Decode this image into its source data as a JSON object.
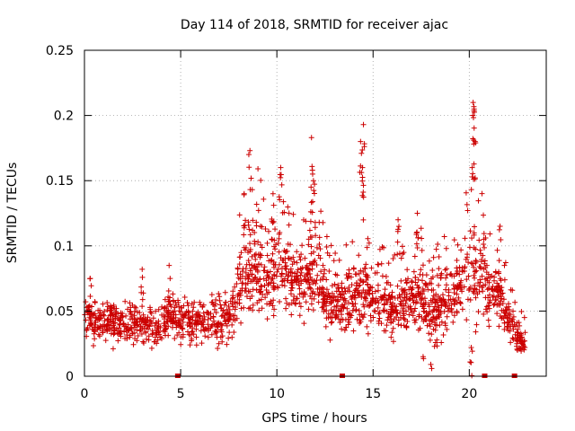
{
  "chart_data": {
    "type": "scatter",
    "title": "Day 114 of 2018, SRMTID for receiver ajac",
    "xlabel": "GPS time / hours",
    "ylabel": "SRMTID / TECUs",
    "xlim": [
      0,
      24
    ],
    "ylim": [
      0,
      0.25
    ],
    "xticks": [
      0,
      5,
      10,
      15,
      20
    ],
    "xtick_labels": [
      "0",
      "5",
      "10",
      "15",
      "20"
    ],
    "yticks": [
      0,
      0.05,
      0.1,
      0.15,
      0.2,
      0.25
    ],
    "ytick_labels": [
      "0",
      "0.05",
      "0.1",
      "0.15",
      "0.2",
      "0.25"
    ],
    "grid": true,
    "marker": "+",
    "color": "#cc0000",
    "baseline_markers_x": [
      4.85,
      13.4,
      20.8,
      22.35
    ],
    "envelope": {
      "hours": [
        0,
        0.5,
        1,
        1.5,
        2,
        2.5,
        3,
        3.5,
        4,
        4.5,
        5,
        5.5,
        6,
        6.5,
        7,
        7.5,
        8,
        8.5,
        9,
        9.5,
        10,
        10.5,
        11,
        11.5,
        12,
        12.5,
        13,
        13.5,
        14,
        14.5,
        15,
        15.5,
        16,
        16.5,
        17,
        17.5,
        18,
        18.5,
        19,
        19.5,
        20,
        20.5,
        21,
        21.5,
        22,
        22.5,
        22.9
      ],
      "mean_tecu": [
        0.045,
        0.043,
        0.042,
        0.041,
        0.04,
        0.04,
        0.039,
        0.04,
        0.038,
        0.048,
        0.043,
        0.042,
        0.042,
        0.041,
        0.042,
        0.044,
        0.065,
        0.08,
        0.085,
        0.075,
        0.085,
        0.08,
        0.07,
        0.075,
        0.085,
        0.06,
        0.055,
        0.055,
        0.058,
        0.07,
        0.055,
        0.055,
        0.052,
        0.055,
        0.058,
        0.062,
        0.05,
        0.055,
        0.058,
        0.068,
        0.075,
        0.085,
        0.06,
        0.065,
        0.045,
        0.03,
        0.025
      ],
      "spread_tecu": [
        0.015,
        0.014,
        0.013,
        0.013,
        0.013,
        0.013,
        0.013,
        0.014,
        0.013,
        0.015,
        0.015,
        0.014,
        0.014,
        0.014,
        0.014,
        0.015,
        0.022,
        0.028,
        0.03,
        0.025,
        0.028,
        0.025,
        0.022,
        0.025,
        0.028,
        0.02,
        0.018,
        0.018,
        0.02,
        0.025,
        0.018,
        0.018,
        0.018,
        0.018,
        0.02,
        0.022,
        0.02,
        0.02,
        0.022,
        0.025,
        0.03,
        0.032,
        0.02,
        0.02,
        0.015,
        0.01,
        0.008
      ]
    },
    "spikes": [
      {
        "x": 8.6,
        "y": 0.173
      },
      {
        "x": 10.2,
        "y": 0.16
      },
      {
        "x": 11.8,
        "y": 0.183
      },
      {
        "x": 11.9,
        "y": 0.15
      },
      {
        "x": 14.35,
        "y": 0.18
      },
      {
        "x": 14.5,
        "y": 0.193
      },
      {
        "x": 14.45,
        "y": 0.16
      },
      {
        "x": 20.2,
        "y": 0.21
      },
      {
        "x": 20.25,
        "y": 0.205
      },
      {
        "x": 20.3,
        "y": 0.18
      },
      {
        "x": 20.15,
        "y": 0.16
      },
      {
        "x": 17.3,
        "y": 0.125
      },
      {
        "x": 16.3,
        "y": 0.12
      },
      {
        "x": 21.6,
        "y": 0.115
      },
      {
        "x": 0.3,
        "y": 0.075
      },
      {
        "x": 3.0,
        "y": 0.082
      },
      {
        "x": 4.4,
        "y": 0.085
      },
      {
        "x": 8.3,
        "y": 0.14
      },
      {
        "x": 9.8,
        "y": 0.14
      },
      {
        "x": 12.2,
        "y": 0.118
      },
      {
        "x": 18.0,
        "y": 0.009
      },
      {
        "x": 17.6,
        "y": 0.015
      },
      {
        "x": 20.1,
        "y": 0.022
      }
    ]
  }
}
